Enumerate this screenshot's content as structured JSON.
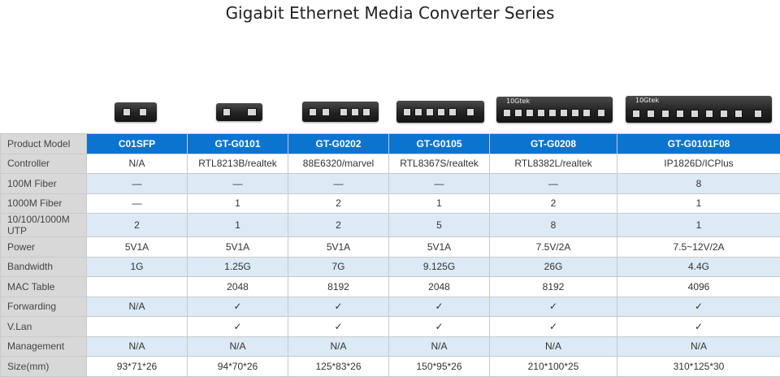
{
  "title": "Gigabit Ethernet Media Converter Series",
  "device_brand": "10Gtek",
  "columns": [
    "Product Model",
    "C01SFP",
    "GT-G0101",
    "GT-G0202",
    "GT-G0105",
    "GT-G0208",
    "GT-G0101F08"
  ],
  "rows": [
    {
      "label": "Controller",
      "values": [
        "N/A",
        "RTL8213B/realtek",
        "88E6320/marvel",
        "RTL8367S/realtek",
        "RTL8382L/realtek",
        "IP1826D/ICPlus"
      ]
    },
    {
      "label": "100M Fiber",
      "values": [
        "—",
        "—",
        "—",
        "—",
        "—",
        "8"
      ]
    },
    {
      "label": "1000M Fiber",
      "values": [
        "—",
        "1",
        "2",
        "1",
        "2",
        "1"
      ]
    },
    {
      "label": "10/100/1000M UTP",
      "values": [
        "2",
        "1",
        "2",
        "5",
        "8",
        "1"
      ]
    },
    {
      "label": "Power",
      "values": [
        "5V1A",
        "5V1A",
        "5V1A",
        "5V1A",
        "7.5V/2A",
        "7.5~12V/2A"
      ]
    },
    {
      "label": "Bandwidth",
      "values": [
        "1G",
        "1.25G",
        "7G",
        "9.125G",
        "26G",
        "4.4G"
      ]
    },
    {
      "label": "MAC Table",
      "values": [
        "",
        "2048",
        "8192",
        "2048",
        "8192",
        "4096"
      ]
    },
    {
      "label": "Forwarding",
      "values": [
        "N/A",
        "✓",
        "✓",
        "✓",
        "✓",
        "✓"
      ]
    },
    {
      "label": "V.Lan",
      "values": [
        "",
        "✓",
        "✓",
        "✓",
        "✓",
        "✓"
      ]
    },
    {
      "label": "Management",
      "values": [
        "N/A",
        "N/A",
        "N/A",
        "N/A",
        "N/A",
        "N/A"
      ]
    },
    {
      "label": "Size(mm)",
      "values": [
        "93*71*26",
        "94*70*26",
        "125*83*26",
        "150*95*26",
        "210*100*25",
        "310*125*30"
      ]
    }
  ]
}
